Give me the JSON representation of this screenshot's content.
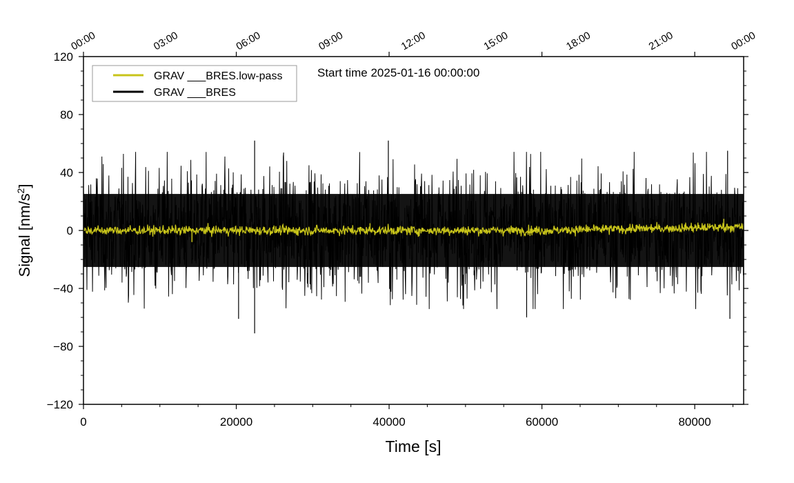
{
  "chart_data": {
    "type": "line",
    "title": "",
    "annotation": "Start time 2025-01-16 00:00:00",
    "xlabel": "Time [s]",
    "ylabel_main": "Signal [nm/s",
    "ylabel_sup": "2",
    "ylabel_close": "]",
    "xlim": [
      0,
      86400
    ],
    "ylim": [
      -120,
      120
    ],
    "x_ticks": [
      0,
      20000,
      40000,
      60000,
      80000
    ],
    "x_tick_labels": [
      "0",
      "20000",
      "40000",
      "60000",
      "80000"
    ],
    "y_ticks": [
      -120,
      -80,
      -40,
      0,
      40,
      80,
      120
    ],
    "y_tick_labels": [
      "−120",
      "−80",
      "−40",
      "0",
      "40",
      "80",
      "120"
    ],
    "top_axis_ticks_s": [
      0,
      10800,
      21600,
      32400,
      43200,
      54000,
      64800,
      75600,
      86400
    ],
    "top_axis_labels": [
      "00:00",
      "03:00",
      "06:00",
      "09:00",
      "12:00",
      "15:00",
      "18:00",
      "21:00",
      "00:00"
    ],
    "legend_position": "top-left",
    "series": [
      {
        "name": "GRAV ___BRES.low-pass",
        "color": "#c8c41a",
        "typical_range": [
          -5,
          5
        ],
        "peaks": [
          {
            "x": 14200,
            "y": -8
          },
          {
            "x": 37500,
            "y": 5
          },
          {
            "x": 68000,
            "y": 4
          },
          {
            "x": 83800,
            "y": 8
          }
        ]
      },
      {
        "name": "GRAV ___BRES",
        "color": "#000000",
        "typical_range": [
          -35,
          35
        ],
        "peaks": [
          {
            "x": 22400,
            "y": 62
          },
          {
            "x": 22400,
            "y": -71
          },
          {
            "x": 39900,
            "y": 62
          },
          {
            "x": 20300,
            "y": -61
          },
          {
            "x": 58000,
            "y": -60
          },
          {
            "x": 84600,
            "y": -61
          },
          {
            "x": 84300,
            "y": 55
          }
        ]
      }
    ]
  }
}
